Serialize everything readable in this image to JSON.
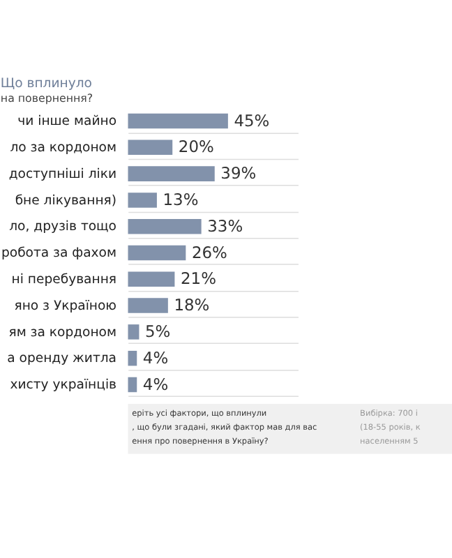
{
  "chart_data": {
    "type": "bar",
    "orientation": "horizontal",
    "title": "Що вплинуло",
    "subtitle": "на повернення?",
    "categories": [
      "чи інше майно",
      "ло за кордоном",
      "доступніші ліки",
      "бне лікування)",
      "ло, друзів тощо",
      "робота за фахом",
      "ні перебування",
      "яно з Україною",
      "ям за кордоном",
      "а оренду житла",
      "хисту українців"
    ],
    "values": [
      45,
      20,
      39,
      13,
      33,
      26,
      21,
      18,
      5,
      4,
      4
    ],
    "value_labels": [
      "45%",
      "20%",
      "39%",
      "13%",
      "33%",
      "26%",
      "21%",
      "18%",
      "5%",
      "4%",
      "4%"
    ],
    "color": "#8292ab",
    "grid": "y",
    "annotations": [
      "еріть усі фактори, що вплинули",
      ", що були згадані, який фактор мав для вас",
      "ення про повернення в Україну?",
      "Вибірка: 700 і",
      "(18-55 років, к",
      "населенням 5"
    ]
  }
}
